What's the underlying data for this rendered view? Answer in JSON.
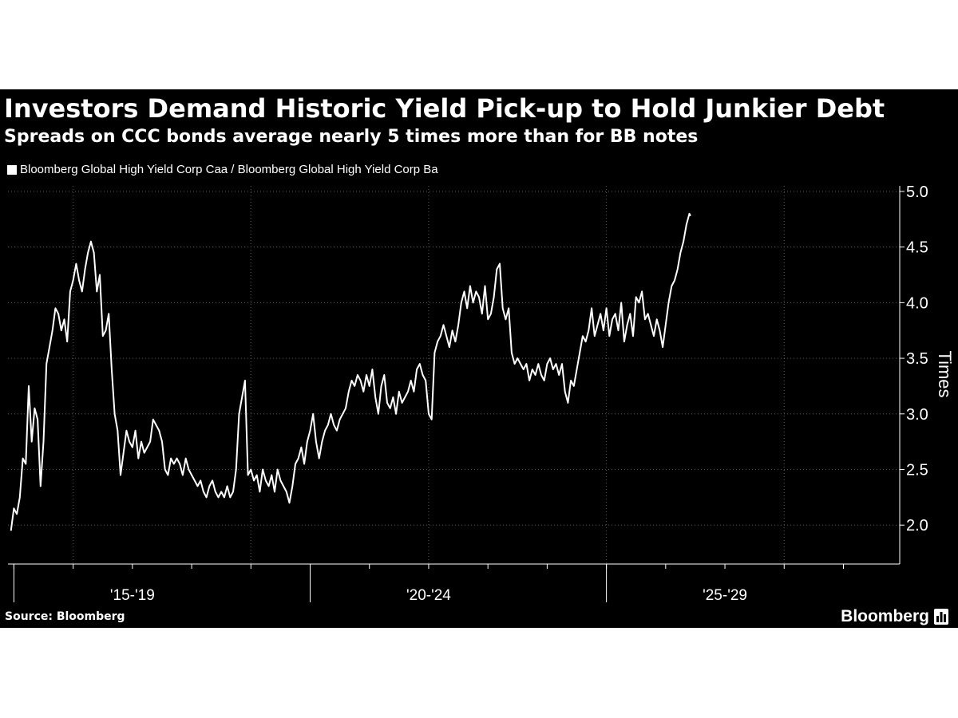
{
  "title": "Investors Demand Historic Yield Pick-up to Hold Junkier Debt",
  "subtitle": "Spreads on CCC bonds average nearly 5 times more than for BB notes",
  "source": "Source: Bloomberg",
  "brand": "Bloomberg",
  "brand_icon": "bar-chart-icon",
  "colors": {
    "background": "#000000",
    "line": "#ffffff",
    "grid": "#5a5a5a",
    "page": "#ffffff"
  },
  "chart_data": {
    "type": "line",
    "title": "Investors Demand Historic Yield Pick-up to Hold Junkier Debt",
    "subtitle": "Spreads on CCC bonds average nearly 5 times more than for BB notes",
    "ylabel": "Times",
    "xlabel": "",
    "ylim": [
      1.65,
      5.05
    ],
    "yticks": [
      2.0,
      2.5,
      3.0,
      3.5,
      4.0,
      4.5,
      5.0
    ],
    "ytick_labels": [
      "2.0",
      "2.5",
      "3.0",
      "3.5",
      "4.0",
      "4.5",
      "5.0"
    ],
    "xlim": [
      2014.9,
      2029.95
    ],
    "xtick_labels": [
      {
        "label": "'15-'19",
        "x": 2015.0,
        "x_end": 2019.0
      },
      {
        "label": "'20-'24",
        "x": 2020.0,
        "x_end": 2024.0
      },
      {
        "label": "'25-'29",
        "x": 2025.0,
        "x_end": 2029.0
      }
    ],
    "year_ticks": [
      2015,
      2016,
      2017,
      2018,
      2019,
      2020,
      2021,
      2022,
      2023,
      2024,
      2025,
      2026,
      2027,
      2028,
      2029
    ],
    "grid": true,
    "legend_position": "top-left",
    "series": [
      {
        "name": "Bloomberg Global High Yield Corp Caa / Bloomberg Global High Yield Corp Ba",
        "points": [
          [
            2014.95,
            1.95
          ],
          [
            2015.0,
            2.15
          ],
          [
            2015.05,
            2.1
          ],
          [
            2015.1,
            2.25
          ],
          [
            2015.15,
            2.6
          ],
          [
            2015.2,
            2.55
          ],
          [
            2015.25,
            3.25
          ],
          [
            2015.3,
            2.75
          ],
          [
            2015.35,
            3.05
          ],
          [
            2015.4,
            2.95
          ],
          [
            2015.45,
            2.35
          ],
          [
            2015.5,
            2.75
          ],
          [
            2015.55,
            3.45
          ],
          [
            2015.6,
            3.6
          ],
          [
            2015.65,
            3.75
          ],
          [
            2015.7,
            3.95
          ],
          [
            2015.75,
            3.9
          ],
          [
            2015.8,
            3.75
          ],
          [
            2015.85,
            3.85
          ],
          [
            2015.9,
            3.65
          ],
          [
            2015.95,
            4.1
          ],
          [
            2016.0,
            4.2
          ],
          [
            2016.05,
            4.35
          ],
          [
            2016.1,
            4.2
          ],
          [
            2016.15,
            4.1
          ],
          [
            2016.2,
            4.3
          ],
          [
            2016.25,
            4.45
          ],
          [
            2016.3,
            4.55
          ],
          [
            2016.35,
            4.45
          ],
          [
            2016.4,
            4.1
          ],
          [
            2016.45,
            4.25
          ],
          [
            2016.5,
            3.7
          ],
          [
            2016.55,
            3.75
          ],
          [
            2016.6,
            3.9
          ],
          [
            2016.65,
            3.4
          ],
          [
            2016.7,
            3.0
          ],
          [
            2016.75,
            2.85
          ],
          [
            2016.8,
            2.45
          ],
          [
            2016.85,
            2.65
          ],
          [
            2016.9,
            2.85
          ],
          [
            2016.95,
            2.75
          ],
          [
            2017.0,
            2.7
          ],
          [
            2017.05,
            2.85
          ],
          [
            2017.1,
            2.6
          ],
          [
            2017.15,
            2.75
          ],
          [
            2017.2,
            2.65
          ],
          [
            2017.25,
            2.7
          ],
          [
            2017.3,
            2.75
          ],
          [
            2017.35,
            2.95
          ],
          [
            2017.4,
            2.9
          ],
          [
            2017.45,
            2.85
          ],
          [
            2017.5,
            2.75
          ],
          [
            2017.55,
            2.5
          ],
          [
            2017.6,
            2.45
          ],
          [
            2017.65,
            2.6
          ],
          [
            2017.7,
            2.55
          ],
          [
            2017.75,
            2.6
          ],
          [
            2017.8,
            2.55
          ],
          [
            2017.85,
            2.45
          ],
          [
            2017.9,
            2.6
          ],
          [
            2017.95,
            2.5
          ],
          [
            2018.0,
            2.45
          ],
          [
            2018.05,
            2.4
          ],
          [
            2018.1,
            2.35
          ],
          [
            2018.15,
            2.4
          ],
          [
            2018.2,
            2.3
          ],
          [
            2018.25,
            2.25
          ],
          [
            2018.3,
            2.35
          ],
          [
            2018.35,
            2.4
          ],
          [
            2018.4,
            2.3
          ],
          [
            2018.45,
            2.25
          ],
          [
            2018.5,
            2.3
          ],
          [
            2018.55,
            2.25
          ],
          [
            2018.6,
            2.35
          ],
          [
            2018.65,
            2.25
          ],
          [
            2018.7,
            2.3
          ],
          [
            2018.75,
            2.5
          ],
          [
            2018.8,
            3.0
          ],
          [
            2018.85,
            3.15
          ],
          [
            2018.9,
            3.3
          ],
          [
            2018.95,
            2.45
          ],
          [
            2019.0,
            2.5
          ],
          [
            2019.05,
            2.4
          ],
          [
            2019.1,
            2.45
          ],
          [
            2019.15,
            2.3
          ],
          [
            2019.2,
            2.5
          ],
          [
            2019.25,
            2.4
          ],
          [
            2019.3,
            2.35
          ],
          [
            2019.35,
            2.45
          ],
          [
            2019.4,
            2.3
          ],
          [
            2019.45,
            2.5
          ],
          [
            2019.5,
            2.4
          ],
          [
            2019.55,
            2.35
          ],
          [
            2019.6,
            2.3
          ],
          [
            2019.65,
            2.2
          ],
          [
            2019.7,
            2.35
          ],
          [
            2019.75,
            2.55
          ],
          [
            2019.8,
            2.6
          ],
          [
            2019.85,
            2.7
          ],
          [
            2019.9,
            2.55
          ],
          [
            2019.95,
            2.75
          ],
          [
            2020.0,
            2.85
          ],
          [
            2020.05,
            3.0
          ],
          [
            2020.1,
            2.75
          ],
          [
            2020.15,
            2.6
          ],
          [
            2020.2,
            2.75
          ],
          [
            2020.25,
            2.85
          ],
          [
            2020.3,
            2.9
          ],
          [
            2020.35,
            3.0
          ],
          [
            2020.4,
            2.9
          ],
          [
            2020.45,
            2.85
          ],
          [
            2020.5,
            2.95
          ],
          [
            2020.55,
            3.0
          ],
          [
            2020.6,
            3.05
          ],
          [
            2020.65,
            3.2
          ],
          [
            2020.7,
            3.3
          ],
          [
            2020.75,
            3.25
          ],
          [
            2020.8,
            3.35
          ],
          [
            2020.85,
            3.3
          ],
          [
            2020.9,
            3.2
          ],
          [
            2020.95,
            3.35
          ],
          [
            2021.0,
            3.25
          ],
          [
            2021.05,
            3.4
          ],
          [
            2021.1,
            3.15
          ],
          [
            2021.15,
            3.0
          ],
          [
            2021.2,
            3.25
          ],
          [
            2021.25,
            3.35
          ],
          [
            2021.3,
            3.1
          ],
          [
            2021.35,
            3.05
          ],
          [
            2021.4,
            3.15
          ],
          [
            2021.45,
            3.0
          ],
          [
            2021.5,
            3.2
          ],
          [
            2021.55,
            3.1
          ],
          [
            2021.6,
            3.15
          ],
          [
            2021.65,
            3.2
          ],
          [
            2021.7,
            3.3
          ],
          [
            2021.75,
            3.2
          ],
          [
            2021.8,
            3.4
          ],
          [
            2021.85,
            3.45
          ],
          [
            2021.9,
            3.35
          ],
          [
            2021.95,
            3.3
          ],
          [
            2022.0,
            3.0
          ],
          [
            2022.05,
            2.95
          ],
          [
            2022.1,
            3.55
          ],
          [
            2022.15,
            3.65
          ],
          [
            2022.2,
            3.7
          ],
          [
            2022.25,
            3.8
          ],
          [
            2022.3,
            3.7
          ],
          [
            2022.35,
            3.6
          ],
          [
            2022.4,
            3.75
          ],
          [
            2022.45,
            3.65
          ],
          [
            2022.5,
            3.8
          ],
          [
            2022.55,
            4.0
          ],
          [
            2022.6,
            4.1
          ],
          [
            2022.65,
            3.95
          ],
          [
            2022.7,
            4.15
          ],
          [
            2022.75,
            4.0
          ],
          [
            2022.8,
            4.1
          ],
          [
            2022.85,
            4.05
          ],
          [
            2022.9,
            3.9
          ],
          [
            2022.95,
            4.15
          ],
          [
            2023.0,
            3.85
          ],
          [
            2023.05,
            3.9
          ],
          [
            2023.1,
            4.05
          ],
          [
            2023.15,
            4.3
          ],
          [
            2023.2,
            4.35
          ],
          [
            2023.25,
            3.95
          ],
          [
            2023.3,
            3.85
          ],
          [
            2023.35,
            3.95
          ],
          [
            2023.4,
            3.55
          ],
          [
            2023.45,
            3.45
          ],
          [
            2023.5,
            3.5
          ],
          [
            2023.55,
            3.45
          ],
          [
            2023.6,
            3.4
          ],
          [
            2023.65,
            3.45
          ],
          [
            2023.7,
            3.3
          ],
          [
            2023.75,
            3.4
          ],
          [
            2023.8,
            3.35
          ],
          [
            2023.85,
            3.45
          ],
          [
            2023.9,
            3.35
          ],
          [
            2023.95,
            3.3
          ],
          [
            2024.0,
            3.45
          ],
          [
            2024.05,
            3.5
          ],
          [
            2024.1,
            3.4
          ],
          [
            2024.15,
            3.45
          ],
          [
            2024.2,
            3.35
          ],
          [
            2024.25,
            3.45
          ],
          [
            2024.3,
            3.2
          ],
          [
            2024.35,
            3.1
          ],
          [
            2024.4,
            3.3
          ],
          [
            2024.45,
            3.25
          ],
          [
            2024.5,
            3.4
          ],
          [
            2024.55,
            3.55
          ],
          [
            2024.6,
            3.7
          ],
          [
            2024.65,
            3.65
          ],
          [
            2024.7,
            3.75
          ],
          [
            2024.75,
            3.95
          ],
          [
            2024.8,
            3.7
          ],
          [
            2024.85,
            3.8
          ],
          [
            2024.9,
            3.9
          ],
          [
            2024.95,
            3.75
          ],
          [
            2025.0,
            3.95
          ],
          [
            2025.05,
            3.7
          ],
          [
            2025.1,
            3.85
          ],
          [
            2025.15,
            3.9
          ],
          [
            2025.2,
            3.75
          ],
          [
            2025.25,
            4.0
          ],
          [
            2025.3,
            3.65
          ],
          [
            2025.35,
            3.8
          ],
          [
            2025.4,
            3.9
          ],
          [
            2025.45,
            3.7
          ],
          [
            2025.5,
            4.05
          ],
          [
            2025.55,
            4.0
          ],
          [
            2025.6,
            4.1
          ],
          [
            2025.65,
            3.85
          ],
          [
            2025.7,
            3.9
          ],
          [
            2025.75,
            3.8
          ],
          [
            2025.8,
            3.7
          ],
          [
            2025.85,
            3.85
          ],
          [
            2025.9,
            3.75
          ],
          [
            2025.95,
            3.6
          ],
          [
            2026.0,
            3.8
          ],
          [
            2026.05,
            4.0
          ],
          [
            2026.1,
            4.15
          ],
          [
            2026.15,
            4.2
          ],
          [
            2026.2,
            4.3
          ],
          [
            2026.25,
            4.45
          ],
          [
            2026.3,
            4.55
          ],
          [
            2026.35,
            4.7
          ],
          [
            2026.4,
            4.8
          ],
          [
            2026.42,
            4.78
          ]
        ]
      }
    ]
  }
}
